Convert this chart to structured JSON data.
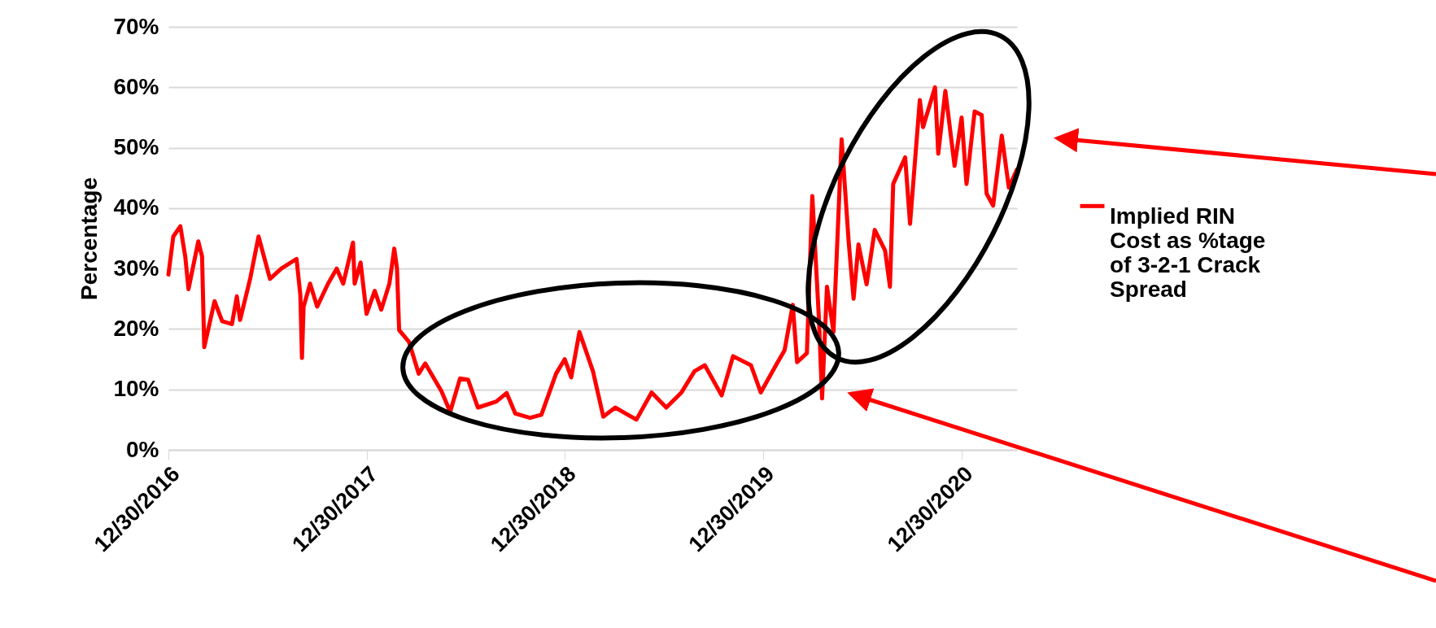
{
  "chart_data": {
    "type": "line",
    "ylabel": "Percentage",
    "x": [
      "2016-12-30",
      "2017-01-08",
      "2017-01-21",
      "2017-01-30",
      "2017-02-05",
      "2017-02-23",
      "2017-03-02",
      "2017-03-06",
      "2017-03-25",
      "2017-04-08",
      "2017-04-26",
      "2017-05-05",
      "2017-05-11",
      "2017-05-30",
      "2017-06-14",
      "2017-07-05",
      "2017-07-26",
      "2017-08-23",
      "2017-08-30",
      "2017-09-02",
      "2017-09-05",
      "2017-09-17",
      "2017-09-30",
      "2017-10-20",
      "2017-11-05",
      "2017-11-17",
      "2017-12-05",
      "2017-12-08",
      "2017-12-19",
      "2017-12-30",
      "2018-01-14",
      "2018-01-26",
      "2018-02-10",
      "2018-02-19",
      "2018-02-24",
      "2018-02-28",
      "2018-03-18",
      "2018-04-05",
      "2018-04-17",
      "2018-05-17",
      "2018-06-02",
      "2018-06-20",
      "2018-07-05",
      "2018-07-23",
      "2018-08-26",
      "2018-09-14",
      "2018-09-30",
      "2018-10-27",
      "2018-11-17",
      "2018-12-14",
      "2018-12-30",
      "2019-01-11",
      "2019-01-26",
      "2019-02-20",
      "2019-03-11",
      "2019-04-02",
      "2019-05-11",
      "2019-06-08",
      "2019-07-05",
      "2019-08-02",
      "2019-08-26",
      "2019-09-14",
      "2019-10-15",
      "2019-11-05",
      "2019-12-08",
      "2019-12-26",
      "2020-01-23",
      "2020-02-08",
      "2020-02-23",
      "2020-03-02",
      "2020-03-20",
      "2020-03-30",
      "2020-04-11",
      "2020-04-17",
      "2020-04-26",
      "2020-05-08",
      "2020-05-23",
      "2020-06-05",
      "2020-06-14",
      "2020-06-23",
      "2020-07-08",
      "2020-07-23",
      "2020-08-11",
      "2020-08-20",
      "2020-08-26",
      "2020-09-17",
      "2020-09-26",
      "2020-10-14",
      "2020-10-20",
      "2020-11-11",
      "2020-11-17",
      "2020-11-30",
      "2020-12-17",
      "2020-12-30",
      "2021-01-08",
      "2021-01-23",
      "2021-02-05",
      "2021-02-14",
      "2021-02-26",
      "2021-03-14",
      "2021-03-27",
      "2021-04-11"
    ],
    "series": [
      {
        "name": "Implied RIN Cost as %tage of 3-2-1 Crack Spread",
        "color": "#ff0000",
        "values": [
          29,
          35.3,
          37,
          32,
          26.6,
          34.5,
          32,
          17,
          24.6,
          21.3,
          20.8,
          25.4,
          21.5,
          28.5,
          35.3,
          28.3,
          30,
          31.6,
          25.6,
          15.2,
          23.7,
          27.5,
          23.7,
          27.5,
          30,
          27.5,
          34.3,
          27.5,
          31,
          22.5,
          26.3,
          23.2,
          27.5,
          33.3,
          30,
          19.8,
          17.9,
          12.6,
          14.3,
          9.7,
          6.3,
          11.8,
          11.6,
          7,
          8,
          9.4,
          6,
          5.3,
          5.8,
          12.6,
          15,
          12,
          19.5,
          13,
          5.5,
          7,
          5,
          9.5,
          7,
          9.5,
          13,
          14,
          9,
          15.5,
          14,
          9.5,
          14,
          16.5,
          24,
          14.5,
          16,
          42,
          22,
          8.5,
          27,
          19.5,
          51.4,
          34.4,
          25,
          34,
          27.4,
          36.4,
          33,
          27,
          44,
          48.4,
          37.4,
          57.9,
          53.4,
          60,
          49,
          59.4,
          47,
          55,
          44,
          56,
          55.4,
          42.4,
          40.4,
          52,
          43.4,
          46.4
        ]
      }
    ],
    "xlim": [
      "2016-12-30",
      "2021-04-11"
    ],
    "xticks": [
      {
        "value": "2016-12-30",
        "label": "12/30/2016"
      },
      {
        "value": "2017-12-30",
        "label": "12/30/2017"
      },
      {
        "value": "2018-12-30",
        "label": "12/30/2018"
      },
      {
        "value": "2019-12-30",
        "label": "12/30/2019"
      },
      {
        "value": "2020-12-30",
        "label": "12/30/2020"
      }
    ],
    "ylim": [
      0,
      70
    ],
    "yticks": [
      {
        "value": 0,
        "label": "0%"
      },
      {
        "value": 10,
        "label": "10%"
      },
      {
        "value": 20,
        "label": "20%"
      },
      {
        "value": 30,
        "label": "30%"
      },
      {
        "value": 40,
        "label": "40%"
      },
      {
        "value": 50,
        "label": "50%"
      },
      {
        "value": 60,
        "label": "60%"
      },
      {
        "value": 70,
        "label": "70%"
      }
    ],
    "grid": "y",
    "legend": "right",
    "line_style": "solid",
    "marker": "none"
  }
}
